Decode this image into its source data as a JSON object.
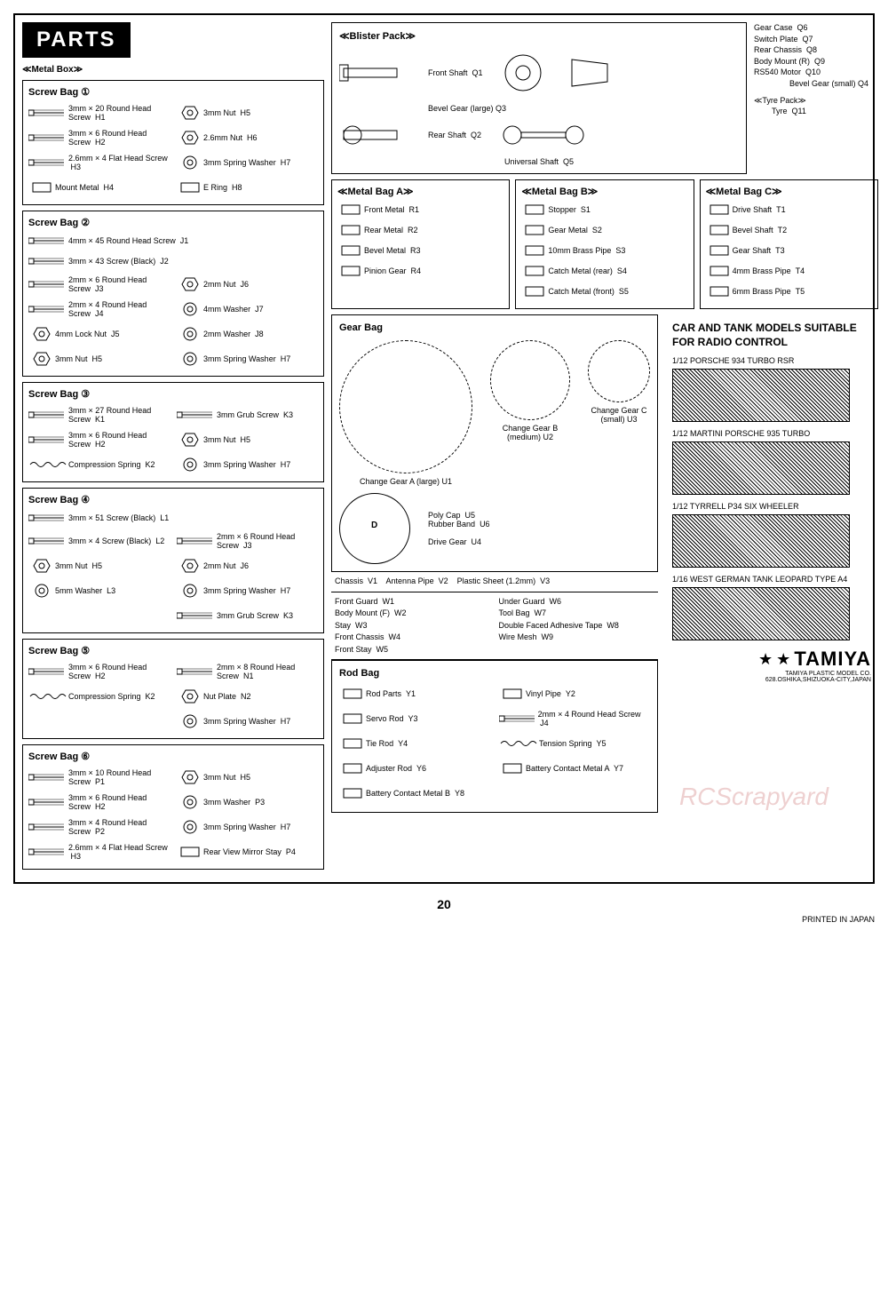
{
  "header": "PARTS",
  "metalBox": {
    "title": "≪Metal Box≫",
    "bags": [
      {
        "name": "Screw Bag ①",
        "left": [
          {
            "label": "3mm × 20 Round Head Screw",
            "code": "H1"
          },
          {
            "label": "3mm × 6 Round Head Screw",
            "code": "H2"
          },
          {
            "label": "2.6mm × 4 Flat Head Screw",
            "code": "H3"
          },
          {
            "label": "Mount Metal",
            "code": "H4"
          }
        ],
        "right": [
          {
            "label": "3mm Nut",
            "code": "H5"
          },
          {
            "label": "2.6mm Nut",
            "code": "H6"
          },
          {
            "label": "3mm Spring Washer",
            "code": "H7"
          },
          {
            "label": "E Ring",
            "code": "H8"
          }
        ]
      },
      {
        "name": "Screw Bag ②",
        "full": [
          {
            "label": "4mm × 45 Round Head Screw",
            "code": "J1"
          },
          {
            "label": "3mm × 43 Screw (Black)",
            "code": "J2"
          }
        ],
        "left": [
          {
            "label": "2mm × 6 Round Head Screw",
            "code": "J3"
          },
          {
            "label": "2mm × 4 Round Head Screw",
            "code": "J4"
          },
          {
            "label": "4mm Lock Nut",
            "code": "J5"
          },
          {
            "label": "3mm Nut",
            "code": "H5"
          }
        ],
        "right": [
          {
            "label": "2mm Nut",
            "code": "J6"
          },
          {
            "label": "4mm Washer",
            "code": "J7"
          },
          {
            "label": "2mm Washer",
            "code": "J8"
          },
          {
            "label": "3mm Spring Washer",
            "code": "H7"
          }
        ]
      },
      {
        "name": "Screw Bag ③",
        "left": [
          {
            "label": "3mm × 27 Round Head Screw",
            "code": "K1"
          },
          {
            "label": "3mm × 6 Round Head Screw",
            "code": "H2"
          },
          {
            "label": "Compression Spring",
            "code": "K2"
          }
        ],
        "right": [
          {
            "label": "3mm Grub Screw",
            "code": "K3"
          },
          {
            "label": "3mm Nut",
            "code": "H5"
          },
          {
            "label": "3mm Spring Washer",
            "code": "H7"
          }
        ]
      },
      {
        "name": "Screw Bag ④",
        "full": [
          {
            "label": "3mm × 51 Screw (Black)",
            "code": "L1"
          }
        ],
        "left": [
          {
            "label": "3mm × 4 Screw (Black)",
            "code": "L2"
          },
          {
            "label": "3mm Nut",
            "code": "H5"
          },
          {
            "label": "5mm Washer",
            "code": "L3"
          }
        ],
        "right": [
          {
            "label": "2mm × 6 Round Head Screw",
            "code": "J3"
          },
          {
            "label": "2mm Nut",
            "code": "J6"
          },
          {
            "label": "3mm Spring Washer",
            "code": "H7"
          },
          {
            "label": "3mm Grub Screw",
            "code": "K3"
          }
        ]
      },
      {
        "name": "Screw Bag ⑤",
        "left": [
          {
            "label": "3mm × 6 Round Head Screw",
            "code": "H2"
          },
          {
            "label": "Compression Spring",
            "code": "K2"
          }
        ],
        "right": [
          {
            "label": "2mm × 8 Round Head Screw",
            "code": "N1"
          },
          {
            "label": "Nut Plate",
            "code": "N2"
          },
          {
            "label": "3mm Spring Washer",
            "code": "H7"
          }
        ]
      },
      {
        "name": "Screw Bag ⑥",
        "left": [
          {
            "label": "3mm × 10 Round Head Screw",
            "code": "P1"
          },
          {
            "label": "3mm × 6 Round Head Screw",
            "code": "H2"
          },
          {
            "label": "3mm × 4 Round Head Screw",
            "code": "P2"
          },
          {
            "label": "2.6mm × 4 Flat Head Screw",
            "code": "H3"
          }
        ],
        "right": [
          {
            "label": "3mm Nut",
            "code": "H5"
          },
          {
            "label": "3mm Washer",
            "code": "P3"
          },
          {
            "label": "3mm Spring Washer",
            "code": "H7"
          },
          {
            "label": "Rear View Mirror Stay",
            "code": "P4"
          }
        ]
      }
    ]
  },
  "blister": {
    "title": "≪Blister Pack≫",
    "items": [
      {
        "label": "Front Shaft",
        "code": "Q1"
      },
      {
        "label": "Rear Shaft",
        "code": "Q2"
      },
      {
        "label": "Bevel Gear (large)",
        "code": "Q3"
      },
      {
        "label": "Bevel Gear (small)",
        "code": "Q4"
      },
      {
        "label": "Universal Shaft",
        "code": "Q5"
      }
    ],
    "sideList": [
      {
        "label": "Gear Case",
        "code": "Q6"
      },
      {
        "label": "Switch Plate",
        "code": "Q7"
      },
      {
        "label": "Rear Chassis",
        "code": "Q8"
      },
      {
        "label": "Body Mount (R)",
        "code": "Q9"
      },
      {
        "label": "RS540 Motor",
        "code": "Q10"
      }
    ],
    "tyrePack": {
      "title": "≪Tyre Pack≫",
      "label": "Tyre",
      "code": "Q11"
    }
  },
  "metalBagA": {
    "title": "≪Metal Bag A≫",
    "items": [
      {
        "label": "Front Metal",
        "code": "R1"
      },
      {
        "label": "Rear Metal",
        "code": "R2"
      },
      {
        "label": "Bevel Metal",
        "code": "R3"
      },
      {
        "label": "Pinion Gear",
        "code": "R4"
      }
    ]
  },
  "metalBagB": {
    "title": "≪Metal Bag B≫",
    "items": [
      {
        "label": "Stopper",
        "code": "S1"
      },
      {
        "label": "Gear Metal",
        "code": "S2"
      },
      {
        "label": "10mm Brass Pipe",
        "code": "S3"
      },
      {
        "label": "Catch Metal (rear)",
        "code": "S4"
      },
      {
        "label": "Catch Metal (front)",
        "code": "S5"
      }
    ]
  },
  "metalBagC": {
    "title": "≪Metal Bag C≫",
    "items": [
      {
        "label": "Drive Shaft",
        "code": "T1"
      },
      {
        "label": "Bevel Shaft",
        "code": "T2"
      },
      {
        "label": "Gear Shaft",
        "code": "T3"
      },
      {
        "label": "4mm Brass Pipe",
        "code": "T4"
      },
      {
        "label": "6mm Brass Pipe",
        "code": "T5"
      }
    ]
  },
  "gearBag": {
    "title": "Gear Bag",
    "items": [
      {
        "label": "Change Gear A (large)",
        "code": "U1"
      },
      {
        "label": "Change Gear B (medium)",
        "code": "U2"
      },
      {
        "label": "Change Gear C (small)",
        "code": "U3"
      },
      {
        "label": "Drive Gear",
        "code": "U4"
      },
      {
        "label": "Poly Cap",
        "code": "U5"
      },
      {
        "label": "Rubber Band",
        "code": "U6"
      }
    ]
  },
  "loose": [
    {
      "label": "Chassis",
      "code": "V1"
    },
    {
      "label": "Antenna Pipe",
      "code": "V2"
    },
    {
      "label": "Plastic Sheet (1.2mm)",
      "code": "V3"
    }
  ],
  "wItems": [
    {
      "label": "Front Guard",
      "code": "W1"
    },
    {
      "label": "Body Mount (F)",
      "code": "W2"
    },
    {
      "label": "Stay",
      "code": "W3"
    },
    {
      "label": "Front Chassis",
      "code": "W4"
    },
    {
      "label": "Front Stay",
      "code": "W5"
    },
    {
      "label": "Under Guard",
      "code": "W6"
    },
    {
      "label": "Tool Bag",
      "code": "W7"
    },
    {
      "label": "Double Faced Adhesive Tape",
      "code": "W8"
    },
    {
      "label": "Wire Mesh",
      "code": "W9"
    }
  ],
  "rodBag": {
    "title": "Rod Bag",
    "items": [
      {
        "label": "Rod Parts",
        "code": "Y1"
      },
      {
        "label": "Vinyl Pipe",
        "code": "Y2"
      },
      {
        "label": "Servo Rod",
        "code": "Y3"
      },
      {
        "label": "2mm × 4 Round Head Screw",
        "code": "J4"
      },
      {
        "label": "Tie Rod",
        "code": "Y4"
      },
      {
        "label": "Tension Spring",
        "code": "Y5"
      },
      {
        "label": "Adjuster Rod",
        "code": "Y6"
      },
      {
        "label": "Battery Contact Metal A",
        "code": "Y7"
      },
      {
        "label": "Battery Contact Metal B",
        "code": "Y8"
      }
    ]
  },
  "models": {
    "title": "CAR AND TANK MODELS SUITABLE FOR RADIO CONTROL",
    "list": [
      "1/12 PORSCHE 934 TURBO RSR",
      "1/12 MARTINI PORSCHE 935 TURBO",
      "1/12 TYRRELL P34 SIX WHEELER",
      "1/16 WEST GERMAN TANK LEOPARD TYPE A4"
    ]
  },
  "tamiya": {
    "name": "TAMIYA",
    "sub1": "TAMIYA PLASTIC MODEL CO.",
    "sub2": "628.OSHIKA,SHIZUOKA-CITY,JAPAN"
  },
  "pageNum": "20",
  "printed": "PRINTED IN JAPAN",
  "watermark": "RCScrapyard"
}
